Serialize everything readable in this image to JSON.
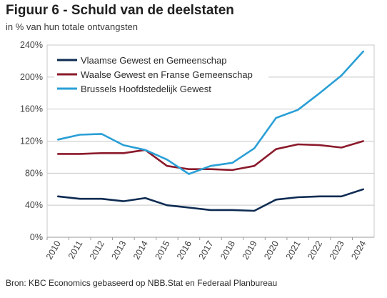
{
  "header": {
    "title": "Figuur 6 - Schuld van de deelstaten",
    "subtitle": "in % van hun totale ontvangsten"
  },
  "footer": {
    "source": "Bron: KBC Economics gebaseerd op NBB.Stat en Federaal Planbureau"
  },
  "chart_data": {
    "type": "line",
    "title": "Figuur 6 - Schuld van de deelstaten",
    "subtitle": "in % van hun totale ontvangsten",
    "x": [
      "2010",
      "2011",
      "2012",
      "2013",
      "2014",
      "2015",
      "2016",
      "2017",
      "2018",
      "2019",
      "2020",
      "2021",
      "2022",
      "2023",
      "2024"
    ],
    "ylim": [
      0,
      240
    ],
    "yticks": [
      0,
      40,
      80,
      120,
      160,
      200,
      240
    ],
    "ytick_labels": [
      "0%",
      "40%",
      "80%",
      "120%",
      "160%",
      "200%",
      "240%"
    ],
    "grid": true,
    "legend_position": "top-left",
    "series": [
      {
        "name": "Vlaamse Gewest en Gemeenschap",
        "color": "#0d2b52",
        "values": [
          51,
          48,
          48,
          45,
          49,
          40,
          37,
          34,
          34,
          33,
          47,
          50,
          51,
          51,
          60
        ]
      },
      {
        "name": "Waalse Gewest en Franse Gemeenschap",
        "color": "#8b1a2b",
        "values": [
          104,
          104,
          105,
          105,
          109,
          89,
          85,
          85,
          84,
          89,
          110,
          116,
          115,
          112,
          120
        ]
      },
      {
        "name": "Brussels Hoofdstedelijk Gewest",
        "color": "#2a9fd6",
        "values": [
          122,
          128,
          129,
          115,
          109,
          97,
          79,
          89,
          93,
          111,
          149,
          159,
          180,
          202,
          232
        ]
      }
    ]
  }
}
